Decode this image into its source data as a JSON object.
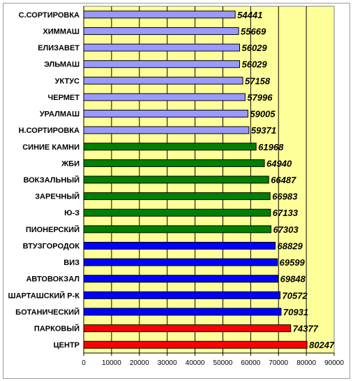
{
  "chart_data": {
    "type": "bar",
    "orientation": "horizontal",
    "categories": [
      "С.СОРТИРОВКА",
      "ХИММАШ",
      "ЕЛИЗАВЕТ",
      "ЭЛЬМАШ",
      "УКТУС",
      "ЧЕРМЕТ",
      "УРАЛМАШ",
      "Н.СОРТИРОВКА",
      "СИНИЕ КАМНИ",
      "ЖБИ",
      "ВОКЗАЛЬНЫЙ",
      "ЗАРЕЧНЫЙ",
      "Ю-З",
      "ПИОНЕРСКИЙ",
      "ВТУЗГОРОДОК",
      "ВИЗ",
      "АВТОВОКЗАЛ",
      "ШАРТАШСКИЙ Р-К",
      "БОТАНИЧЕСКИЙ",
      "ПАРКОВЫЙ",
      "ЦЕНТР"
    ],
    "values": [
      54441,
      55669,
      56029,
      56029,
      57158,
      57996,
      59005,
      59371,
      61968,
      64940,
      66487,
      66983,
      67133,
      67303,
      68829,
      69599,
      69848,
      70572,
      70931,
      74377,
      80247
    ],
    "bar_colors": [
      "#9999ff",
      "#9999ff",
      "#9999ff",
      "#9999ff",
      "#9999ff",
      "#9999ff",
      "#9999ff",
      "#9999ff",
      "#008000",
      "#008000",
      "#008000",
      "#008000",
      "#008000",
      "#008000",
      "#0000ff",
      "#0000ff",
      "#0000ff",
      "#0000ff",
      "#0000ff",
      "#ff0000",
      "#ff0000"
    ],
    "xlim": [
      0,
      90000
    ],
    "xticks": [
      "0",
      "10000",
      "20000",
      "30000",
      "40000",
      "50000",
      "60000",
      "70000",
      "80000",
      "90000"
    ],
    "title": "",
    "xlabel": "",
    "ylabel": "",
    "grid": "vertical",
    "plot_background": "#ffff99",
    "legend": "none"
  }
}
